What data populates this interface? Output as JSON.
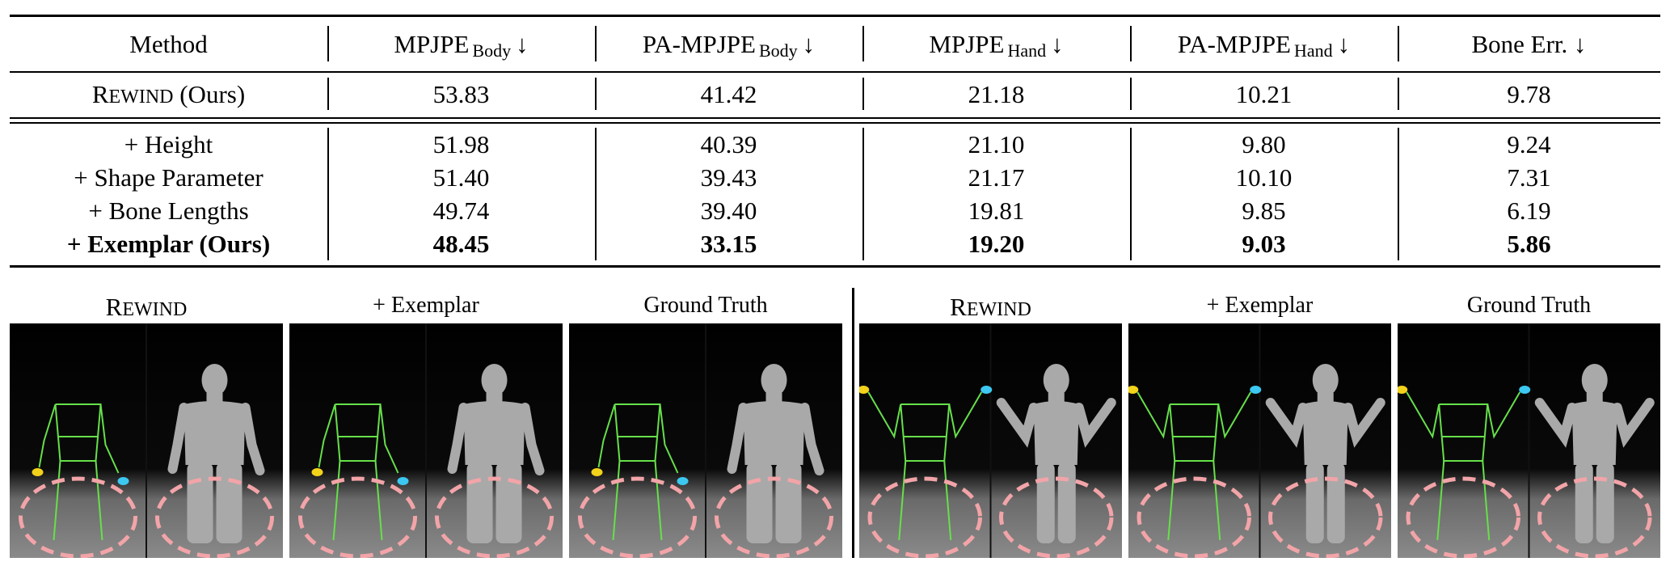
{
  "table": {
    "header": {
      "method": "Method",
      "col1_main": "MPJPE",
      "col1_sub": "Body",
      "col1_arrow": "↓",
      "col2_main": "PA-MPJPE",
      "col2_sub": "Body",
      "col2_arrow": "↓",
      "col3_main": "MPJPE",
      "col3_sub": "Hand",
      "col3_arrow": "↓",
      "col4_main": "PA-MPJPE",
      "col4_sub": "Hand",
      "col4_arrow": "↓",
      "col5": "Bone Err. ↓"
    },
    "baseline": {
      "method_cap": "R",
      "method_rest": "EWIND",
      "method_suffix": " (Ours)",
      "values": [
        "53.83",
        "41.42",
        "21.18",
        "10.21",
        "9.78"
      ]
    },
    "rows": [
      {
        "method": "+ Height",
        "values": [
          "51.98",
          "40.39",
          "21.10",
          "9.80",
          "9.24"
        ]
      },
      {
        "method": "+ Shape Parameter",
        "values": [
          "51.40",
          "39.43",
          "21.17",
          "10.10",
          "7.31"
        ]
      },
      {
        "method": "+ Bone Lengths",
        "values": [
          "49.74",
          "39.40",
          "19.81",
          "9.85",
          "6.19"
        ]
      },
      {
        "method": "+ Exemplar (Ours)",
        "values": [
          "48.45",
          "33.15",
          "19.20",
          "9.03",
          "5.86"
        ]
      }
    ]
  },
  "figure": {
    "groups": [
      {
        "panels": [
          {
            "label_cap": "R",
            "label_rest": "EWIND",
            "label": ""
          },
          {
            "label": "+ Exemplar"
          },
          {
            "label": "Ground Truth"
          }
        ]
      },
      {
        "panels": [
          {
            "label_cap": "R",
            "label_rest": "EWIND",
            "label": ""
          },
          {
            "label": "+ Exemplar"
          },
          {
            "label": "Ground Truth"
          }
        ]
      }
    ],
    "colors": {
      "skeleton": "#66e04a",
      "left_hand": "#f2d21a",
      "right_hand": "#3cc8f0",
      "circle": "#f2a4a8",
      "mesh": "#a9a9a9"
    }
  }
}
